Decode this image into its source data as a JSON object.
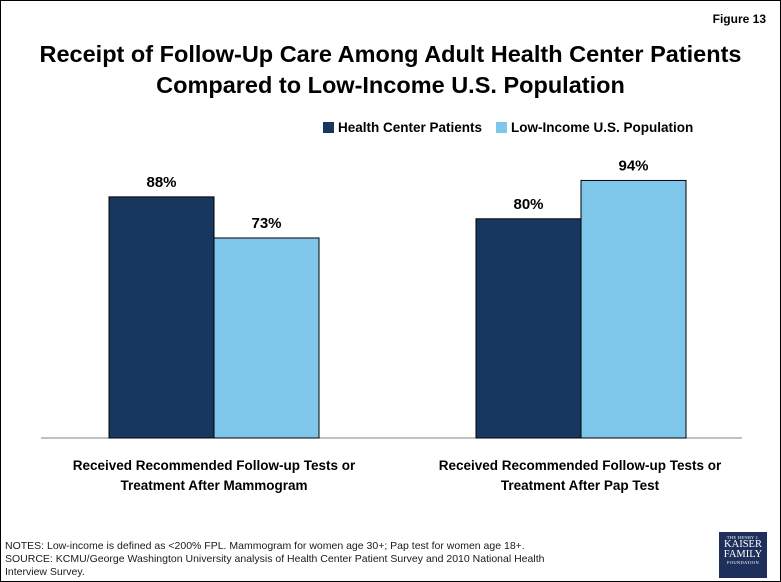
{
  "figure_label": "Figure 13",
  "title": "Receipt of Follow-Up Care Among Adult Health Center Patients\nCompared to Low-Income U.S. Population",
  "colors": {
    "health_center": "#17375e",
    "low_income": "#7fc6eb",
    "axis": "#808080"
  },
  "chart_data": {
    "type": "bar",
    "title": "Receipt of Follow-Up Care Among Adult Health Center Patients Compared to Low-Income U.S. Population",
    "categories": [
      "Received Recommended Follow-up Tests or\nTreatment After Mammogram",
      "Received Recommended Follow-up Tests or\nTreatment After Pap Test"
    ],
    "series": [
      {
        "name": "Health Center Patients",
        "values": [
          88,
          80
        ],
        "labels": [
          "88%",
          "80%"
        ]
      },
      {
        "name": "Low-Income U.S. Population",
        "values": [
          73,
          94
        ],
        "labels": [
          "73%",
          "94%"
        ]
      }
    ],
    "ylim": [
      0,
      100
    ],
    "grid": false,
    "legend_position": "top-right",
    "xlabel": "",
    "ylabel": ""
  },
  "notes": {
    "line1": "NOTES: Low-income is defined as <200% FPL. Mammogram for women age 30+; Pap test for women age 18+.",
    "line2": "SOURCE: KCMU/George Washington University analysis of Health Center Patient Survey and 2010 National Health\nInterview Survey."
  },
  "logo": {
    "top": "THE HENRY J.",
    "line1": "KAISER",
    "line2": "FAMILY",
    "bottom": "FOUNDATION"
  }
}
